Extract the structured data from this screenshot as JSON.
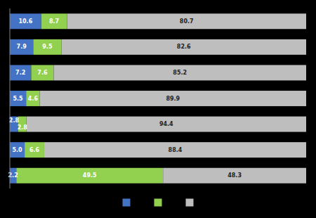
{
  "chart_data": {
    "type": "bar",
    "orientation": "horizontal",
    "stacked": true,
    "data_labels": true,
    "tick_labels": false,
    "legend": "bottom",
    "categories": [
      null,
      null,
      null,
      null,
      null,
      null,
      null
    ],
    "xlim": [
      0,
      100
    ],
    "series": [
      {
        "color": "#4472C4",
        "values": [
          10.6,
          7.9,
          7.2,
          5.5,
          2.8,
          5.0,
          2.2
        ],
        "value_labels": [
          "10.6",
          "7.9",
          "7.2",
          "5.5",
          "2.8",
          "5.0",
          "2.2"
        ]
      },
      {
        "color": "#92D050",
        "values": [
          8.7,
          9.5,
          7.6,
          4.6,
          2.8,
          6.6,
          49.5
        ]
      },
      {
        "color": "#BEBEBE",
        "values": [
          80.7,
          82.6,
          85.2,
          89.9,
          94.4,
          88.4,
          48.3
        ]
      }
    ]
  }
}
